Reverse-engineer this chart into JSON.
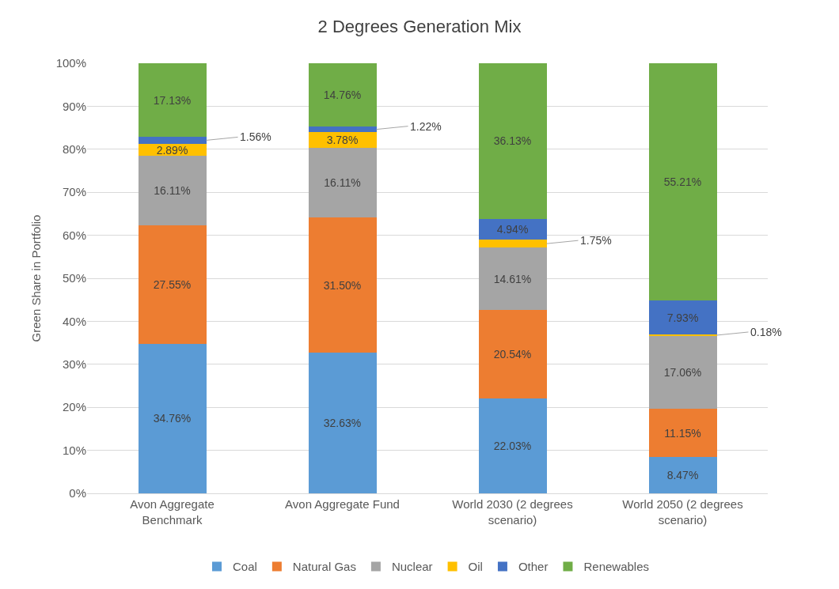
{
  "chart_data": {
    "type": "bar",
    "stacked": true,
    "title": "2 Degrees Generation Mix",
    "ylabel": "Green Share in Portfolio",
    "categories": [
      "Avon Aggregate Benchmark",
      "Avon Aggregate Fund",
      "World 2030 (2 degrees scenario)",
      "World 2050 (2 degrees scenario)"
    ],
    "series": [
      {
        "name": "Coal",
        "color": "#5b9bd5",
        "values": [
          34.76,
          32.63,
          22.03,
          8.47
        ],
        "value_labels": [
          "34.76%",
          "32.63%",
          "22.03%",
          "8.47%"
        ]
      },
      {
        "name": "Natural Gas",
        "color": "#ed7d31",
        "values": [
          27.55,
          31.5,
          20.54,
          11.15
        ],
        "value_labels": [
          "27.55%",
          "31.50%",
          "20.54%",
          "11.15%"
        ]
      },
      {
        "name": "Nuclear",
        "color": "#a5a5a5",
        "values": [
          16.11,
          16.11,
          14.61,
          17.06
        ],
        "value_labels": [
          "16.11%",
          "16.11%",
          "14.61%",
          "17.06%"
        ]
      },
      {
        "name": "Oil",
        "color": "#ffc000",
        "values": [
          2.89,
          3.78,
          1.75,
          0.18
        ],
        "value_labels": [
          "2.89%",
          "3.78%",
          "1.75%",
          "0.18%"
        ]
      },
      {
        "name": "Other",
        "color": "#4472c4",
        "values": [
          1.56,
          1.22,
          4.94,
          7.93
        ],
        "value_labels": [
          "1.56%",
          "1.22%",
          "4.94%",
          "7.93%"
        ]
      },
      {
        "name": "Renewables",
        "color": "#70ad47",
        "values": [
          17.13,
          14.76,
          36.13,
          55.21
        ],
        "value_labels": [
          "17.13%",
          "14.76%",
          "36.13%",
          "55.21%"
        ]
      }
    ],
    "ylim": [
      0,
      100
    ],
    "yticks": [
      {
        "value": 0,
        "label": "0%"
      },
      {
        "value": 10,
        "label": "10%"
      },
      {
        "value": 20,
        "label": "20%"
      },
      {
        "value": 30,
        "label": "30%"
      },
      {
        "value": 40,
        "label": "40%"
      },
      {
        "value": 50,
        "label": "50%"
      },
      {
        "value": 60,
        "label": "60%"
      },
      {
        "value": 70,
        "label": "70%"
      },
      {
        "value": 80,
        "label": "80%"
      },
      {
        "value": 90,
        "label": "90%"
      },
      {
        "value": 100,
        "label": "100%"
      }
    ],
    "grid": "y",
    "legend": "bottom"
  }
}
